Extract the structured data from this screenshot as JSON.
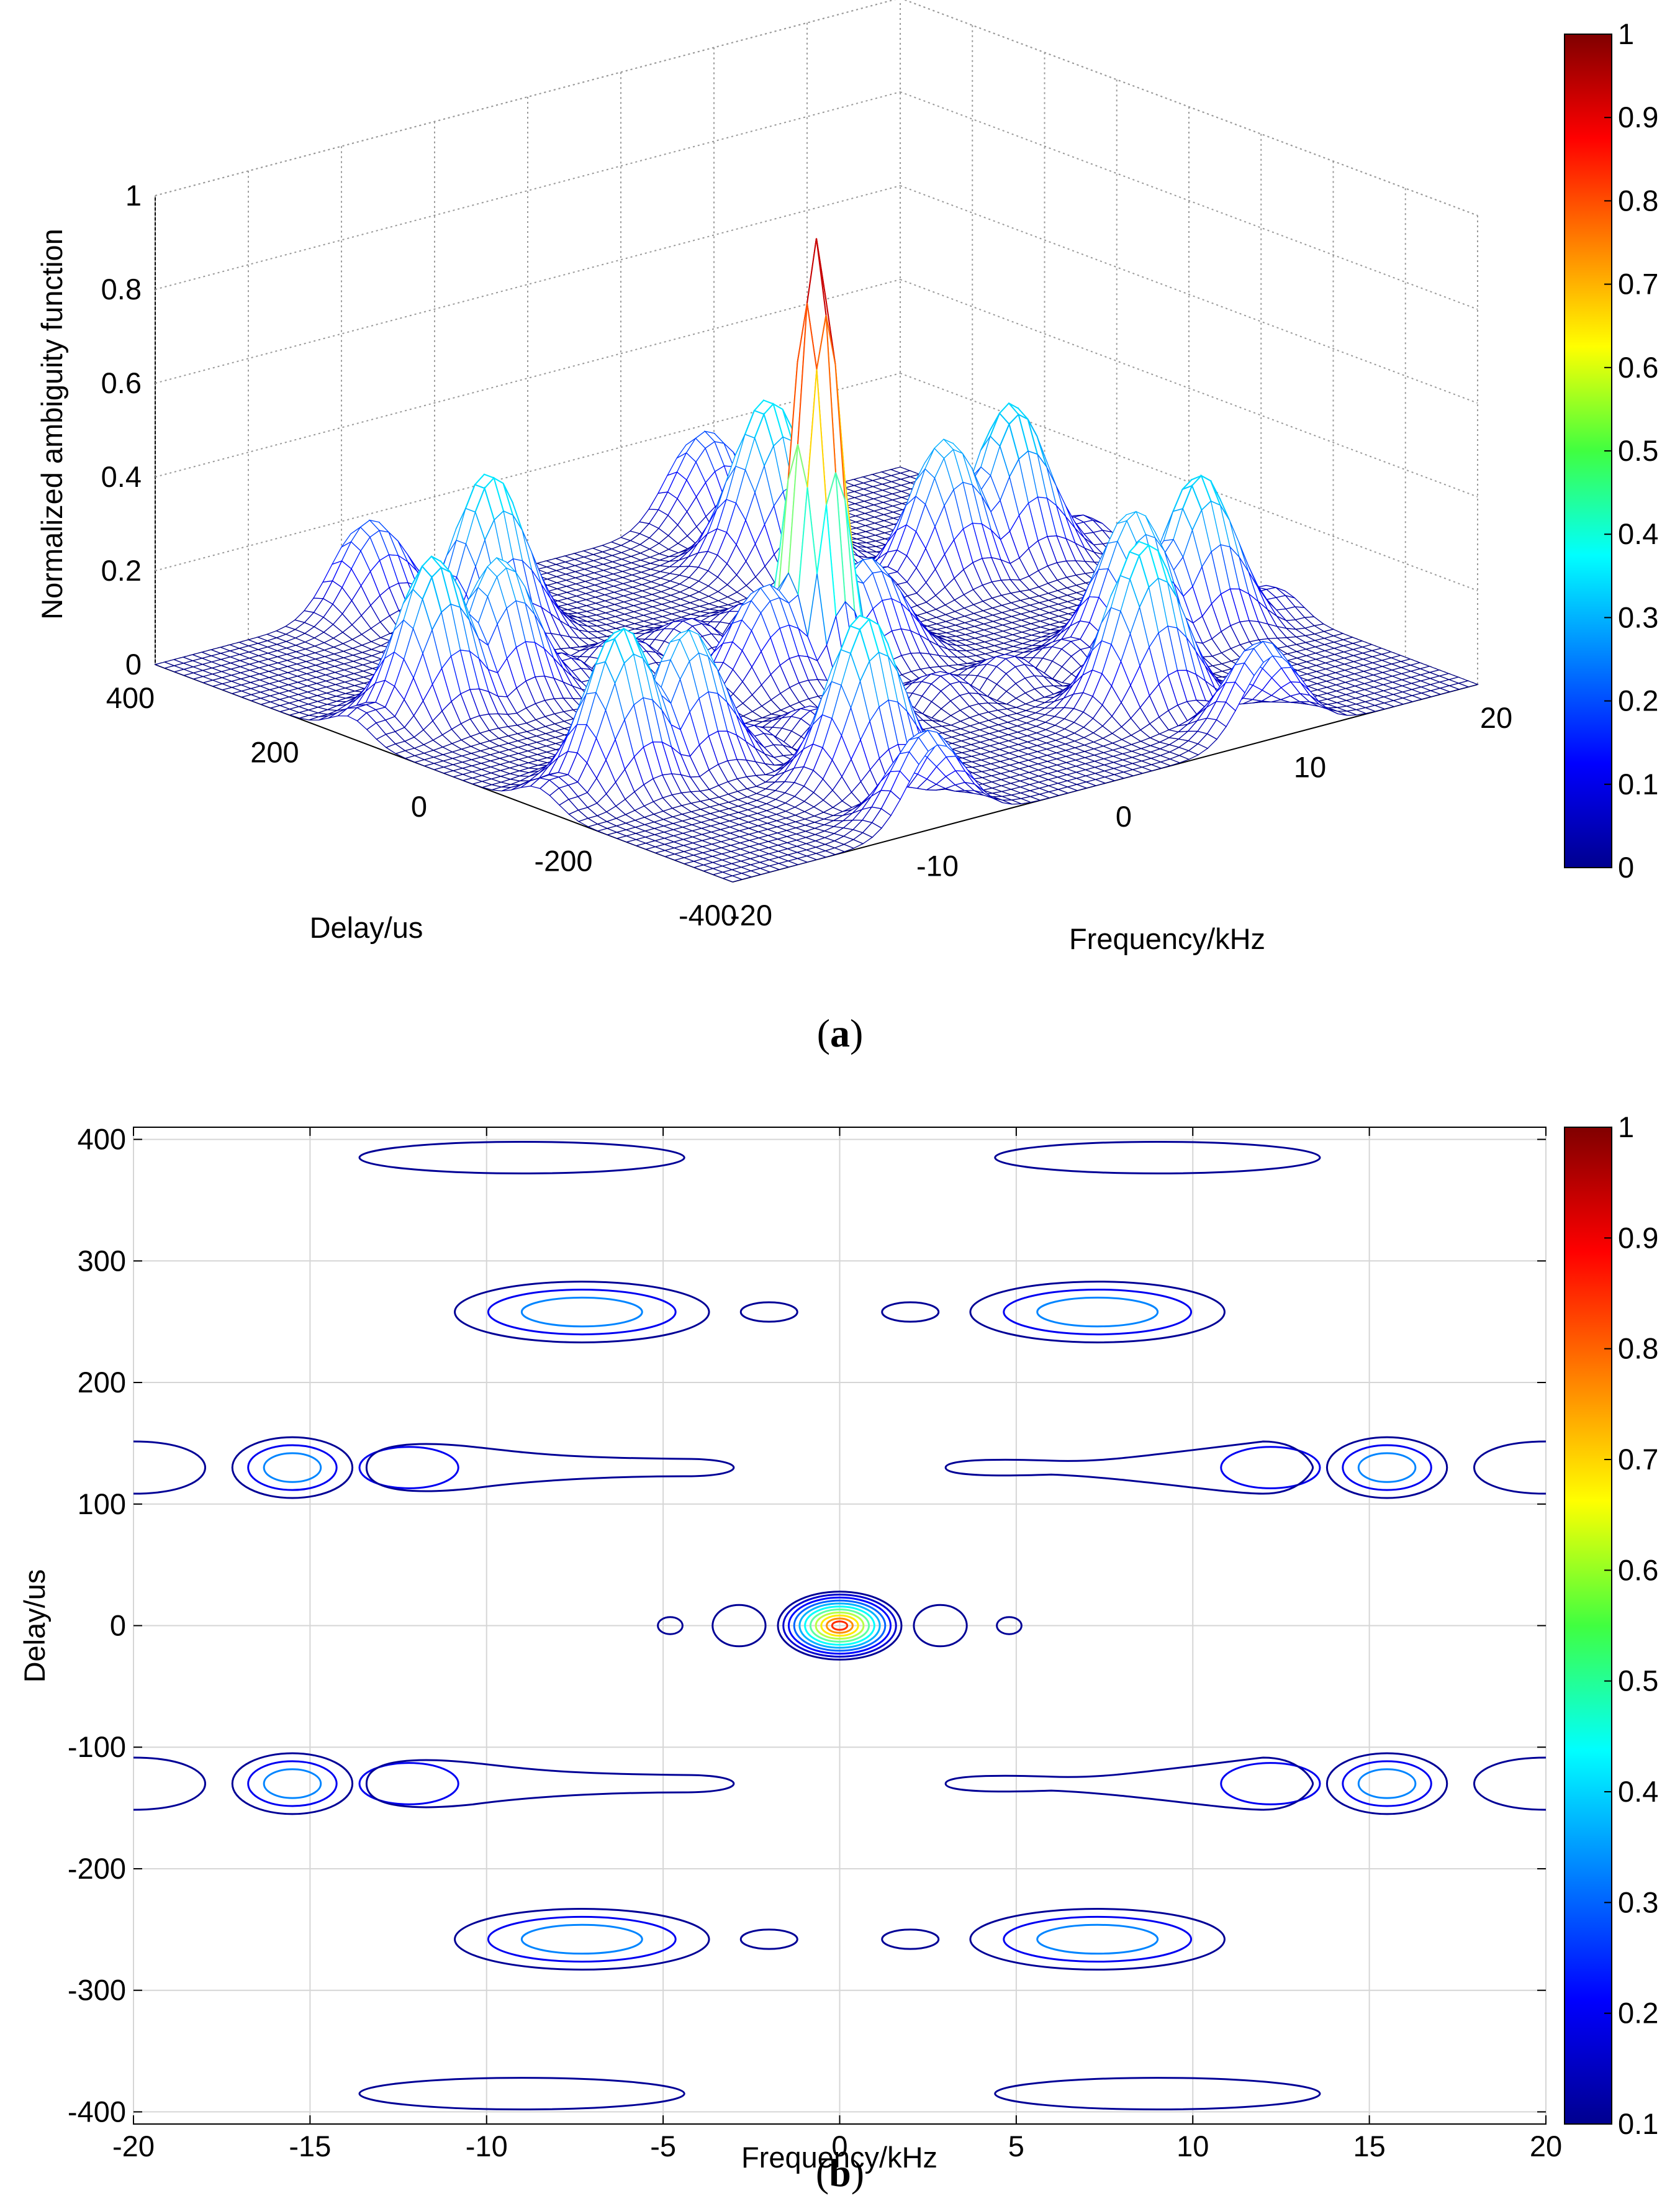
{
  "chart_data": [
    {
      "type": "surface",
      "panel_label": "a",
      "title": "",
      "xlabel": "Frequency/kHz",
      "ylabel": "Delay/us",
      "zlabel": "Normalized ambiguity function",
      "xlim": [
        -20,
        20
      ],
      "ylim": [
        -400,
        400
      ],
      "zlim": [
        0,
        1
      ],
      "x_ticks": [
        -20,
        -10,
        0,
        10,
        20
      ],
      "x_tick_labels": [
        "-20",
        "-10",
        "0",
        "10",
        "20"
      ],
      "y_ticks": [
        -400,
        -200,
        0,
        200,
        400
      ],
      "y_tick_labels": [
        "-400",
        "-200",
        "0",
        "200",
        "400"
      ],
      "z_ticks": [
        0,
        0.2,
        0.4,
        0.6,
        0.8,
        1
      ],
      "z_tick_labels": [
        "0",
        "0.2",
        "0.4",
        "0.6",
        "0.8",
        "1"
      ],
      "grid": true,
      "colormap": "jet",
      "colorbar": {
        "range": [
          0,
          1
        ],
        "ticks": [
          "0",
          "0.1",
          "0.2",
          "0.3",
          "0.4",
          "0.5",
          "0.6",
          "0.7",
          "0.8",
          "0.9",
          "1"
        ]
      },
      "peaks": [
        {
          "frequency": 0,
          "delay": 0,
          "value": 0.93
        },
        {
          "frequency": -7.5,
          "delay": 260,
          "value": 0.36
        },
        {
          "frequency": 7.5,
          "delay": 260,
          "value": 0.36
        },
        {
          "frequency": -7.5,
          "delay": -260,
          "value": 0.36
        },
        {
          "frequency": 7.5,
          "delay": -260,
          "value": 0.36
        },
        {
          "frequency": -15.5,
          "delay": 130,
          "value": 0.34
        },
        {
          "frequency": 15.5,
          "delay": 130,
          "value": 0.34
        },
        {
          "frequency": -15.5,
          "delay": -130,
          "value": 0.34
        },
        {
          "frequency": 15.5,
          "delay": -130,
          "value": 0.34
        },
        {
          "frequency": -12,
          "delay": 130,
          "value": 0.3
        },
        {
          "frequency": 12,
          "delay": 130,
          "value": 0.3
        },
        {
          "frequency": -12,
          "delay": -130,
          "value": 0.3
        },
        {
          "frequency": 12,
          "delay": -130,
          "value": 0.3
        },
        {
          "frequency": -2.7,
          "delay": 0,
          "value": 0.22
        },
        {
          "frequency": 2.7,
          "delay": 0,
          "value": 0.22
        },
        {
          "frequency": -9,
          "delay": 385,
          "value": 0.2
        },
        {
          "frequency": 9,
          "delay": 385,
          "value": 0.2
        },
        {
          "frequency": -9,
          "delay": -385,
          "value": 0.2
        },
        {
          "frequency": 9,
          "delay": -385,
          "value": 0.2
        }
      ]
    },
    {
      "type": "contour",
      "panel_label": "b",
      "title": "",
      "xlabel": "Frequency/kHz",
      "ylabel": "Delay/us",
      "xlim": [
        -20,
        20
      ],
      "ylim": [
        -410,
        410
      ],
      "x_ticks": [
        -20,
        -15,
        -10,
        -5,
        0,
        5,
        10,
        15,
        20
      ],
      "x_tick_labels": [
        "-20",
        "-15",
        "-10",
        "-5",
        "0",
        "5",
        "10",
        "15",
        "20"
      ],
      "y_ticks": [
        -400,
        -300,
        -200,
        -100,
        0,
        100,
        200,
        300,
        400
      ],
      "y_tick_labels": [
        "-400",
        "-300",
        "-200",
        "-100",
        "0",
        "100",
        "200",
        "300",
        "400"
      ],
      "grid": true,
      "colormap": "jet",
      "colorbar": {
        "range": [
          0.1,
          1
        ],
        "ticks": [
          "0.1",
          "0.2",
          "0.3",
          "0.4",
          "0.5",
          "0.6",
          "0.7",
          "0.8",
          "0.9",
          "1"
        ]
      },
      "contour_groups": [
        {
          "f": 0,
          "d": 0,
          "rf": 1.75,
          "rd": 28,
          "levels": [
            0.12,
            0.17,
            0.22,
            0.3,
            0.37,
            0.44,
            0.52,
            0.6,
            0.68,
            0.76,
            0.85
          ]
        },
        {
          "f": -9,
          "d": 385,
          "rf": 4.6,
          "rd": 13,
          "levels": [
            0.12
          ]
        },
        {
          "f": 9,
          "d": 385,
          "rf": 4.6,
          "rd": 13,
          "levels": [
            0.12
          ]
        },
        {
          "f": -9,
          "d": -385,
          "rf": 4.6,
          "rd": 13,
          "levels": [
            0.12
          ]
        },
        {
          "f": 9,
          "d": -385,
          "rf": 4.6,
          "rd": 13,
          "levels": [
            0.12
          ]
        },
        {
          "f": -7.3,
          "d": 258,
          "rf": 3.6,
          "rd": 25,
          "levels": [
            0.12,
            0.2,
            0.33
          ]
        },
        {
          "f": 7.3,
          "d": 258,
          "rf": 3.6,
          "rd": 25,
          "levels": [
            0.12,
            0.2,
            0.33
          ]
        },
        {
          "f": -7.3,
          "d": -258,
          "rf": 3.6,
          "rd": 25,
          "levels": [
            0.12,
            0.2,
            0.33
          ]
        },
        {
          "f": 7.3,
          "d": -258,
          "rf": 3.6,
          "rd": 25,
          "levels": [
            0.12,
            0.2,
            0.33
          ]
        },
        {
          "f": -2.0,
          "d": 258,
          "rf": 0.8,
          "rd": 8,
          "levels": [
            0.12
          ]
        },
        {
          "f": 2.0,
          "d": 258,
          "rf": 0.8,
          "rd": 8,
          "levels": [
            0.12
          ]
        },
        {
          "f": -2.0,
          "d": -258,
          "rf": 0.8,
          "rd": 8,
          "levels": [
            0.12
          ]
        },
        {
          "f": 2.0,
          "d": -258,
          "rf": 0.8,
          "rd": 8,
          "levels": [
            0.12
          ]
        },
        {
          "f": -15.5,
          "d": 130,
          "rf": 1.7,
          "rd": 25,
          "levels": [
            0.12,
            0.2,
            0.33
          ]
        },
        {
          "f": 15.5,
          "d": 130,
          "rf": 1.7,
          "rd": 25,
          "levels": [
            0.12,
            0.2,
            0.33
          ]
        },
        {
          "f": -15.5,
          "d": -130,
          "rf": 1.7,
          "rd": 25,
          "levels": [
            0.12,
            0.2,
            0.33
          ]
        },
        {
          "f": 15.5,
          "d": -130,
          "rf": 1.7,
          "rd": 25,
          "levels": [
            0.12,
            0.2,
            0.33
          ]
        },
        {
          "f": -12.2,
          "d": 130,
          "rf": 1.4,
          "rd": 17,
          "levels": [
            0.2
          ]
        },
        {
          "f": 12.2,
          "d": 130,
          "rf": 1.4,
          "rd": 17,
          "levels": [
            0.2
          ]
        },
        {
          "f": -12.2,
          "d": -130,
          "rf": 1.4,
          "rd": 17,
          "levels": [
            0.2
          ]
        },
        {
          "f": 12.2,
          "d": -130,
          "rf": 1.4,
          "rd": 17,
          "levels": [
            0.2
          ]
        },
        {
          "f": -2.85,
          "d": 0,
          "rf": 0.75,
          "rd": 17,
          "levels": [
            0.12
          ]
        },
        {
          "f": 2.85,
          "d": 0,
          "rf": 0.75,
          "rd": 17,
          "levels": [
            0.12
          ]
        },
        {
          "f": -4.8,
          "d": 0,
          "rf": 0.35,
          "rd": 7,
          "levels": [
            0.12
          ]
        },
        {
          "f": 4.8,
          "d": 0,
          "rf": 0.35,
          "rd": 7,
          "levels": [
            0.12
          ]
        }
      ],
      "elongated_contours": [
        {
          "f_from": -13.4,
          "f_to": -3.0,
          "d": 130,
          "level": 0.12
        },
        {
          "f_from": 3.0,
          "f_to": 13.4,
          "d": 130,
          "level": 0.12
        },
        {
          "f_from": -13.4,
          "f_to": -3.0,
          "d": -130,
          "level": 0.12
        },
        {
          "f_from": 3.0,
          "f_to": 13.4,
          "d": -130,
          "level": 0.12
        }
      ],
      "edge_contours": [
        {
          "f": -20,
          "d": 130,
          "side": "left",
          "level": 0.12
        },
        {
          "f": -20,
          "d": -130,
          "side": "left",
          "level": 0.12
        },
        {
          "f": 20,
          "d": 130,
          "side": "right",
          "level": 0.12
        },
        {
          "f": 20,
          "d": -130,
          "side": "right",
          "level": 0.12
        }
      ]
    }
  ],
  "captions": {
    "a_open": "(",
    "a_letter": "a",
    "a_close": ")",
    "b_open": "(",
    "b_letter": "b",
    "b_close": ")"
  }
}
